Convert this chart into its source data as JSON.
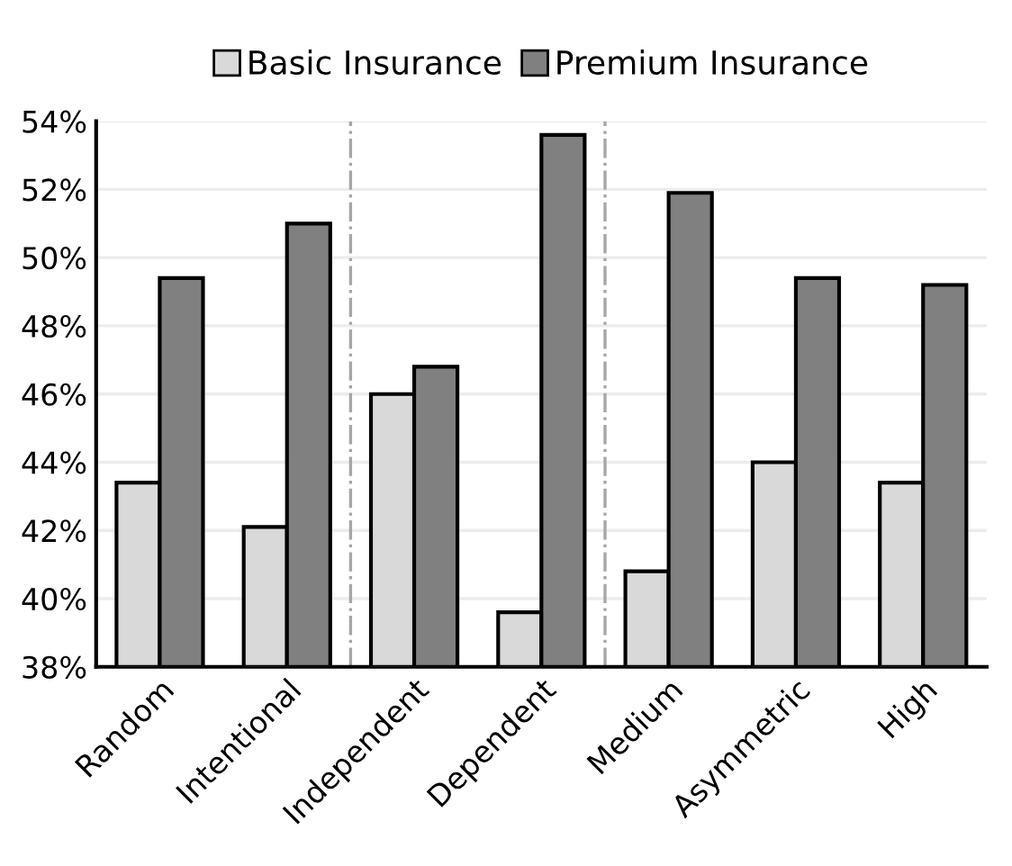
{
  "chart_data": {
    "type": "bar",
    "categories": [
      "Random",
      "Intentional",
      "Independent",
      "Dependent",
      "Medium",
      "Asymmetric",
      "High"
    ],
    "series": [
      {
        "name": "Basic Insurance",
        "color": "#d9d9d9",
        "values": [
          43.4,
          42.1,
          46.0,
          39.6,
          40.8,
          44.0,
          43.4
        ]
      },
      {
        "name": "Premium Insurance",
        "color": "#808080",
        "values": [
          49.4,
          51.0,
          46.8,
          53.6,
          51.9,
          49.4,
          49.2
        ]
      }
    ],
    "ylim": [
      38,
      54
    ],
    "yticks": [
      {
        "value": 38,
        "label": "38%"
      },
      {
        "value": 40,
        "label": "40%"
      },
      {
        "value": 42,
        "label": "42%"
      },
      {
        "value": 44,
        "label": "44%"
      },
      {
        "value": 46,
        "label": "46%"
      },
      {
        "value": 48,
        "label": "48%"
      },
      {
        "value": 50,
        "label": "50%"
      },
      {
        "value": 52,
        "label": "52%"
      },
      {
        "value": 54,
        "label": "54%"
      }
    ],
    "grid": "y",
    "legend": "top"
  }
}
